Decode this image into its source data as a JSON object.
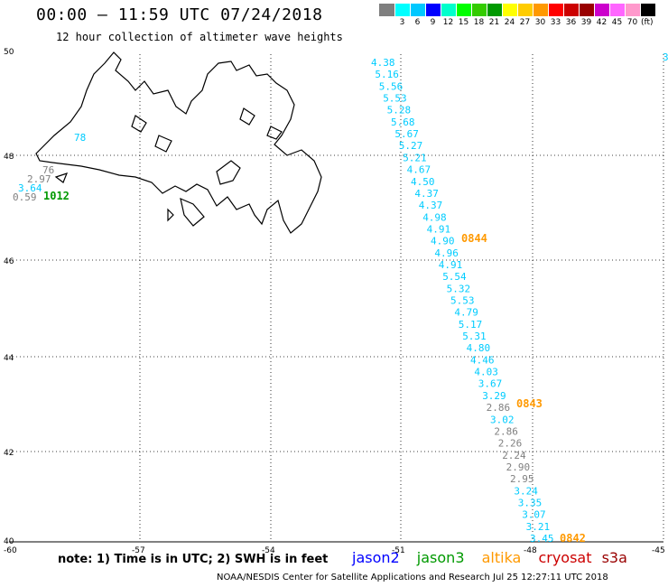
{
  "header": {
    "title": "00:00 – 11:59 UTC 07/24/2018",
    "subtitle": "12 hour collection of altimeter wave heights"
  },
  "scale": {
    "colors": [
      "#7f7f7f",
      "#00ffff",
      "#00c8ff",
      "#0000ff",
      "#00ffcc",
      "#00ff00",
      "#33cc00",
      "#009900",
      "#ffff00",
      "#ffcc00",
      "#ff9900",
      "#ff0000",
      "#cc0000",
      "#990000",
      "#cc00cc",
      "#ff66ff",
      "#ff99cc",
      "#000000"
    ],
    "labels": [
      "",
      "3",
      "6",
      "9",
      "12",
      "15",
      "18",
      "21",
      "24",
      "27",
      "30",
      "33",
      "36",
      "39",
      "42",
      "45",
      "70"
    ],
    "unit": "(ft)"
  },
  "axes": {
    "lat_labels": [
      "50",
      "48",
      "46",
      "44",
      "42",
      "40"
    ],
    "lon_labels": [
      "-60",
      "-57",
      "-54",
      "-51",
      "-48",
      "-45"
    ]
  },
  "track_main": [
    {
      "v": "4.38",
      "c": "#00ccff"
    },
    {
      "v": "5.16",
      "c": "#00ccff"
    },
    {
      "v": "5.56",
      "c": "#00ccff"
    },
    {
      "v": "5.53",
      "c": "#00ccff"
    },
    {
      "v": "5.28",
      "c": "#00ccff"
    },
    {
      "v": "5.68",
      "c": "#00ccff"
    },
    {
      "v": "5.67",
      "c": "#00ccff"
    },
    {
      "v": "5.27",
      "c": "#00ccff"
    },
    {
      "v": "5.21",
      "c": "#00ccff"
    },
    {
      "v": "4.67",
      "c": "#00ccff"
    },
    {
      "v": "4.50",
      "c": "#00ccff"
    },
    {
      "v": "4.37",
      "c": "#00ccff"
    },
    {
      "v": "4.37",
      "c": "#00ccff"
    },
    {
      "v": "4.98",
      "c": "#00ccff"
    },
    {
      "v": "4.91",
      "c": "#00ccff"
    },
    {
      "v": "4.90",
      "c": "#00ccff"
    },
    {
      "v": "4.96",
      "c": "#00ccff"
    },
    {
      "v": "4.91",
      "c": "#00ccff"
    },
    {
      "v": "5.54",
      "c": "#00ccff"
    },
    {
      "v": "5.32",
      "c": "#00ccff"
    },
    {
      "v": "5.53",
      "c": "#00ccff"
    },
    {
      "v": "4.79",
      "c": "#00ccff"
    },
    {
      "v": "5.17",
      "c": "#00ccff"
    },
    {
      "v": "5.31",
      "c": "#00ccff"
    },
    {
      "v": "4.80",
      "c": "#00ccff"
    },
    {
      "v": "4.46",
      "c": "#00ccff"
    },
    {
      "v": "4.03",
      "c": "#00ccff"
    },
    {
      "v": "3.67",
      "c": "#00ccff"
    },
    {
      "v": "3.29",
      "c": "#00ccff"
    },
    {
      "v": "2.86",
      "c": "#808080"
    },
    {
      "v": "3.02",
      "c": "#00ccff"
    },
    {
      "v": "2.86",
      "c": "#808080"
    },
    {
      "v": "2.26",
      "c": "#808080"
    },
    {
      "v": "2.24",
      "c": "#808080"
    },
    {
      "v": "2.90",
      "c": "#808080"
    },
    {
      "v": "2.95",
      "c": "#808080"
    },
    {
      "v": "3.24",
      "c": "#00ccff"
    },
    {
      "v": "3.35",
      "c": "#00ccff"
    },
    {
      "v": "3.07",
      "c": "#00ccff"
    },
    {
      "v": "3.21",
      "c": "#00ccff"
    },
    {
      "v": "3.45",
      "c": "#00ccff"
    }
  ],
  "track_west": [
    {
      "v": "78",
      "c": "#00ccff"
    },
    {
      "v": "76",
      "c": "#808080"
    },
    {
      "v": "2.97",
      "c": "#808080"
    },
    {
      "v": "3.64",
      "c": "#00ccff"
    },
    {
      "v": "0.59",
      "c": "#808080"
    }
  ],
  "pass_times": [
    {
      "t": "0844",
      "c": "#ff9900"
    },
    {
      "t": "0843",
      "c": "#ff9900"
    },
    {
      "t": "0842",
      "c": "#ff9900"
    },
    {
      "t": "1012",
      "c": "#009900"
    }
  ],
  "edge_mark": {
    "v": "3",
    "c": "#00ccff"
  },
  "footer": {
    "note": "note: 1) Time is in UTC; 2) SWH is in feet",
    "legend": [
      {
        "name": "jason2",
        "color": "#0000ff"
      },
      {
        "name": "jason3",
        "color": "#009900"
      },
      {
        "name": "altika",
        "color": "#ff9900"
      },
      {
        "name": "cryosat",
        "color": "#cc0000"
      },
      {
        "name": "s3a",
        "color": "#990000"
      }
    ],
    "credit": "NOAA/NESDIS Center for Satellite Applications and Research    Jul 25 12:27:11 UTC 2018"
  }
}
